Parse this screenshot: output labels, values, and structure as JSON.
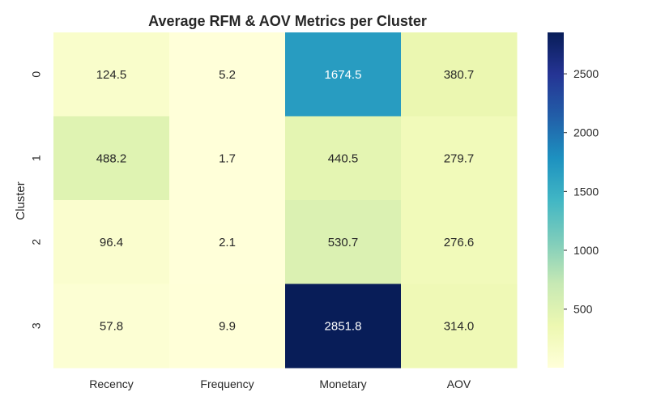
{
  "chart_data": {
    "type": "heatmap",
    "title": "Average RFM & AOV Metrics per Cluster",
    "xlabel": "",
    "ylabel": "Cluster",
    "x_categories": [
      "Recency",
      "Frequency",
      "Monetary",
      "AOV"
    ],
    "y_categories": [
      "0",
      "1",
      "2",
      "3"
    ],
    "values": [
      [
        124.5,
        5.2,
        1674.5,
        380.7
      ],
      [
        488.2,
        1.7,
        440.5,
        279.7
      ],
      [
        96.4,
        2.1,
        530.7,
        276.6
      ],
      [
        57.8,
        9.9,
        2851.8,
        314.0
      ]
    ],
    "value_format": "0.1f",
    "colormap": "YlGnBu",
    "color_range": [
      1.7,
      2851.8
    ],
    "colorbar_ticks": [
      500,
      1000,
      1500,
      2000,
      2500
    ],
    "colors": {
      "low": "#ffffd9",
      "high": "#081d58",
      "text_dark": "#262626",
      "text_light": "#ffffff"
    }
  }
}
